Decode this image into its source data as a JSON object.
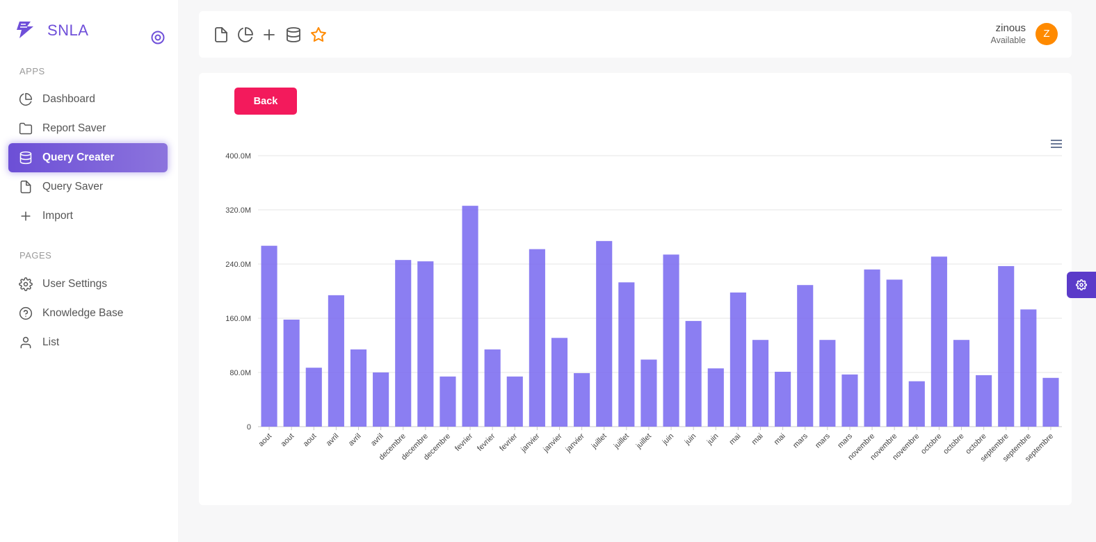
{
  "brand": {
    "name": "SNLA"
  },
  "sidebar": {
    "apps_label": "APPS",
    "pages_label": "PAGES",
    "apps": [
      {
        "label": "Dashboard",
        "icon": "pie-chart-icon"
      },
      {
        "label": "Report Saver",
        "icon": "folder-icon"
      },
      {
        "label": "Query Creater",
        "icon": "database-icon",
        "active": true
      },
      {
        "label": "Query Saver",
        "icon": "file-icon"
      },
      {
        "label": "Import",
        "icon": "plus-icon"
      }
    ],
    "pages": [
      {
        "label": "User Settings",
        "icon": "gear-icon"
      },
      {
        "label": "Knowledge Base",
        "icon": "help-circle-icon"
      },
      {
        "label": "List",
        "icon": "user-icon"
      }
    ]
  },
  "user": {
    "name": "zinous",
    "status": "Available",
    "initial": "Z"
  },
  "main": {
    "back_label": "Back"
  },
  "colors": {
    "accent": "#6f4fd9",
    "bar": "#7b6cf0",
    "back": "#f31a5c",
    "avatar": "#ff8a00",
    "star": "#ff8a00"
  },
  "chart_data": {
    "type": "bar",
    "categories": [
      "aout",
      "aout",
      "aout",
      "avril",
      "avril",
      "avril",
      "decembre",
      "decembre",
      "decembre",
      "fevrier",
      "fevrier",
      "fevrier",
      "janvier",
      "janvier",
      "janvier",
      "juillet",
      "juillet",
      "juillet",
      "juin",
      "juin",
      "juin",
      "mai",
      "mai",
      "mai",
      "mars",
      "mars",
      "mars",
      "novembre",
      "novembre",
      "novembre",
      "octobre",
      "octobre",
      "octobre",
      "septembre",
      "septembre",
      "septembre"
    ],
    "values": [
      267,
      158,
      87,
      194,
      114,
      80,
      246,
      244,
      74,
      326,
      114,
      74,
      262,
      131,
      79,
      274,
      213,
      99,
      254,
      156,
      86,
      198,
      128,
      81,
      209,
      128,
      77,
      232,
      217,
      67,
      251,
      128,
      76,
      237,
      173,
      72
    ],
    "unit": "M",
    "y_ticks": [
      "0",
      "80.0M",
      "160.0M",
      "240.0M",
      "320.0M",
      "400.0M"
    ],
    "ylim": [
      0,
      400
    ],
    "grid": true,
    "legend": "none"
  }
}
